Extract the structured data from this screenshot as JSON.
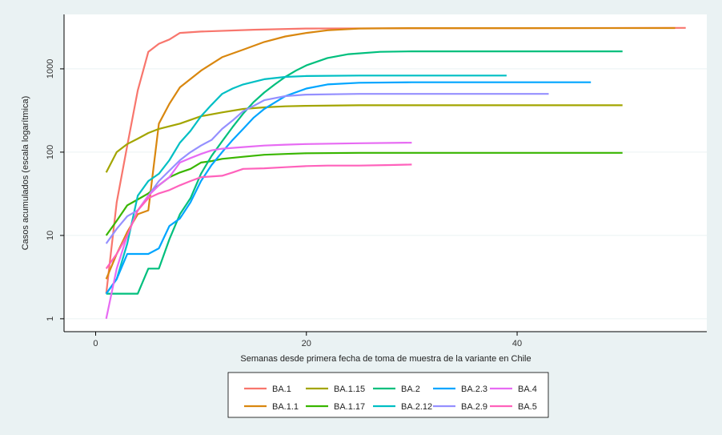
{
  "chart_data": {
    "type": "line",
    "xlabel": "Semanas desde primera fecha de toma de muestra de la variante en Chile",
    "ylabel": "Casos acumulados (escala logarítmica)",
    "xlim": [
      -3,
      58
    ],
    "ylim": [
      0.7,
      4500
    ],
    "yscale": "log",
    "xticks": [
      0,
      20,
      40
    ],
    "yticks": [
      1,
      10,
      100,
      1000
    ],
    "ytick_labels": [
      "1",
      "10",
      "100",
      "1000"
    ],
    "grid": true,
    "legend_position": "bottom",
    "series": [
      {
        "name": "BA.1",
        "color": "#f8766d",
        "points": [
          [
            1,
            2
          ],
          [
            2,
            25
          ],
          [
            3,
            120
          ],
          [
            4,
            550
          ],
          [
            5,
            1600
          ],
          [
            6,
            2000
          ],
          [
            7,
            2250
          ],
          [
            8,
            2700
          ],
          [
            10,
            2800
          ],
          [
            15,
            2950
          ],
          [
            20,
            3050
          ],
          [
            30,
            3070
          ],
          [
            40,
            3080
          ],
          [
            56,
            3100
          ]
        ]
      },
      {
        "name": "BA.1.1",
        "color": "#d9870f",
        "points": [
          [
            1,
            3
          ],
          [
            2,
            6
          ],
          [
            3,
            11
          ],
          [
            4,
            18
          ],
          [
            5,
            20
          ],
          [
            6,
            220
          ],
          [
            7,
            380
          ],
          [
            8,
            600
          ],
          [
            10,
            950
          ],
          [
            12,
            1380
          ],
          [
            14,
            1700
          ],
          [
            16,
            2100
          ],
          [
            18,
            2450
          ],
          [
            20,
            2700
          ],
          [
            22,
            2900
          ],
          [
            25,
            3050
          ],
          [
            30,
            3080
          ],
          [
            40,
            3080
          ],
          [
            55,
            3090
          ]
        ]
      },
      {
        "name": "BA.1.15",
        "color": "#a3a500",
        "points": [
          [
            1,
            57
          ],
          [
            2,
            100
          ],
          [
            3,
            125
          ],
          [
            4,
            145
          ],
          [
            5,
            170
          ],
          [
            6,
            190
          ],
          [
            8,
            220
          ],
          [
            10,
            270
          ],
          [
            12,
            300
          ],
          [
            14,
            330
          ],
          [
            16,
            345
          ],
          [
            18,
            355
          ],
          [
            20,
            360
          ],
          [
            25,
            365
          ],
          [
            30,
            365
          ],
          [
            40,
            365
          ],
          [
            50,
            365
          ]
        ]
      },
      {
        "name": "BA.1.17",
        "color": "#39b600",
        "points": [
          [
            1,
            10
          ],
          [
            2,
            15
          ],
          [
            3,
            23
          ],
          [
            4,
            27
          ],
          [
            5,
            32
          ],
          [
            6,
            40
          ],
          [
            7,
            50
          ],
          [
            8,
            57
          ],
          [
            9,
            63
          ],
          [
            10,
            75
          ],
          [
            11,
            78
          ],
          [
            12,
            83
          ],
          [
            14,
            88
          ],
          [
            16,
            93
          ],
          [
            18,
            95
          ],
          [
            20,
            97
          ],
          [
            25,
            98
          ],
          [
            30,
            98
          ],
          [
            40,
            98
          ],
          [
            50,
            98
          ]
        ]
      },
      {
        "name": "BA.2",
        "color": "#00bf7d",
        "points": [
          [
            1,
            2
          ],
          [
            2,
            2
          ],
          [
            3,
            2
          ],
          [
            4,
            2
          ],
          [
            5,
            4
          ],
          [
            6,
            4
          ],
          [
            7,
            9
          ],
          [
            8,
            18
          ],
          [
            9,
            28
          ],
          [
            10,
            55
          ],
          [
            11,
            90
          ],
          [
            12,
            135
          ],
          [
            13,
            200
          ],
          [
            14,
            290
          ],
          [
            15,
            400
          ],
          [
            16,
            520
          ],
          [
            17,
            650
          ],
          [
            18,
            800
          ],
          [
            19,
            950
          ],
          [
            20,
            1100
          ],
          [
            22,
            1350
          ],
          [
            24,
            1500
          ],
          [
            27,
            1600
          ],
          [
            30,
            1620
          ],
          [
            40,
            1620
          ],
          [
            50,
            1620
          ]
        ]
      },
      {
        "name": "BA.2.12",
        "color": "#00bfc4",
        "points": [
          [
            1,
            2
          ],
          [
            2,
            3
          ],
          [
            3,
            8
          ],
          [
            4,
            30
          ],
          [
            5,
            45
          ],
          [
            6,
            55
          ],
          [
            7,
            80
          ],
          [
            8,
            130
          ],
          [
            9,
            180
          ],
          [
            10,
            270
          ],
          [
            11,
            370
          ],
          [
            12,
            500
          ],
          [
            13,
            580
          ],
          [
            14,
            650
          ],
          [
            16,
            750
          ],
          [
            18,
            800
          ],
          [
            20,
            820
          ],
          [
            25,
            830
          ],
          [
            30,
            830
          ],
          [
            39,
            830
          ]
        ]
      },
      {
        "name": "BA.2.3",
        "color": "#00a5ff",
        "points": [
          [
            1,
            2
          ],
          [
            2,
            3
          ],
          [
            3,
            6
          ],
          [
            4,
            6
          ],
          [
            5,
            6
          ],
          [
            6,
            7
          ],
          [
            7,
            13
          ],
          [
            8,
            16
          ],
          [
            9,
            25
          ],
          [
            10,
            45
          ],
          [
            11,
            70
          ],
          [
            12,
            100
          ],
          [
            13,
            140
          ],
          [
            14,
            190
          ],
          [
            15,
            260
          ],
          [
            16,
            330
          ],
          [
            18,
            470
          ],
          [
            20,
            580
          ],
          [
            22,
            650
          ],
          [
            25,
            680
          ],
          [
            30,
            690
          ],
          [
            40,
            690
          ],
          [
            47,
            690
          ]
        ]
      },
      {
        "name": "BA.2.9",
        "color": "#9590ff",
        "points": [
          [
            1,
            8
          ],
          [
            2,
            12
          ],
          [
            3,
            17
          ],
          [
            4,
            20
          ],
          [
            5,
            30
          ],
          [
            6,
            45
          ],
          [
            7,
            60
          ],
          [
            8,
            80
          ],
          [
            9,
            100
          ],
          [
            10,
            120
          ],
          [
            11,
            140
          ],
          [
            12,
            190
          ],
          [
            13,
            240
          ],
          [
            14,
            310
          ],
          [
            15,
            360
          ],
          [
            16,
            420
          ],
          [
            18,
            470
          ],
          [
            20,
            490
          ],
          [
            25,
            500
          ],
          [
            30,
            500
          ],
          [
            43,
            500
          ]
        ]
      },
      {
        "name": "BA.4",
        "color": "#e76bf3",
        "points": [
          [
            1,
            1
          ],
          [
            2,
            4
          ],
          [
            3,
            10
          ],
          [
            4,
            20
          ],
          [
            5,
            30
          ],
          [
            6,
            40
          ],
          [
            7,
            50
          ],
          [
            8,
            75
          ],
          [
            9,
            85
          ],
          [
            10,
            95
          ],
          [
            11,
            105
          ],
          [
            12,
            110
          ],
          [
            14,
            115
          ],
          [
            16,
            120
          ],
          [
            18,
            123
          ],
          [
            20,
            125
          ],
          [
            25,
            128
          ],
          [
            30,
            130
          ]
        ]
      },
      {
        "name": "BA.5",
        "color": "#ff62bc",
        "points": [
          [
            1,
            4
          ],
          [
            2,
            6
          ],
          [
            3,
            10
          ],
          [
            4,
            20
          ],
          [
            5,
            28
          ],
          [
            6,
            32
          ],
          [
            7,
            35
          ],
          [
            8,
            40
          ],
          [
            9,
            45
          ],
          [
            10,
            50
          ],
          [
            12,
            52
          ],
          [
            13,
            57
          ],
          [
            14,
            63
          ],
          [
            16,
            64
          ],
          [
            18,
            66
          ],
          [
            20,
            68
          ],
          [
            22,
            69
          ],
          [
            25,
            69
          ],
          [
            28,
            70
          ],
          [
            30,
            71
          ]
        ]
      }
    ]
  }
}
